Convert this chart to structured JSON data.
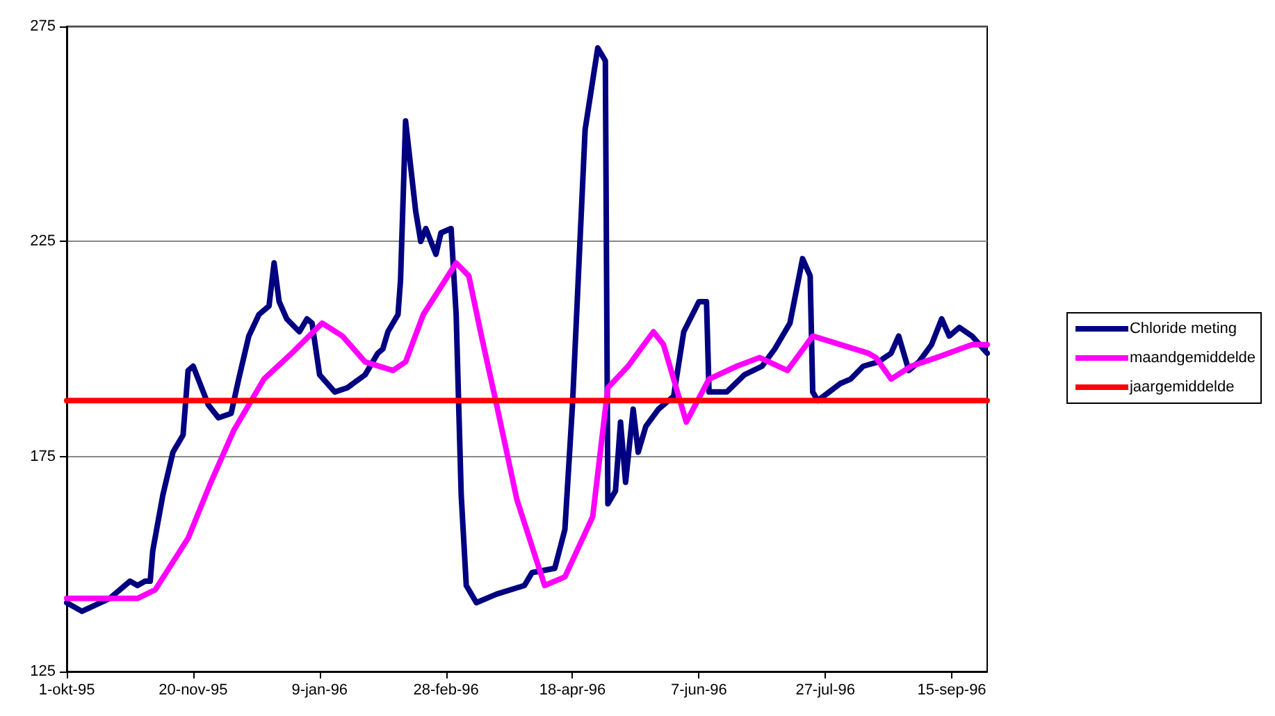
{
  "chart_data": {
    "type": "line",
    "xlim": [
      "1995-10-01",
      "1996-09-29"
    ],
    "xticks": [
      {
        "value": "1995-10-01",
        "label": "1-okt-95"
      },
      {
        "value": "1995-11-20",
        "label": "20-nov-95"
      },
      {
        "value": "1996-01-09",
        "label": "9-jan-96"
      },
      {
        "value": "1996-02-28",
        "label": "28-feb-96"
      },
      {
        "value": "1996-04-18",
        "label": "18-apr-96"
      },
      {
        "value": "1996-06-07",
        "label": "7-jun-96"
      },
      {
        "value": "1996-07-27",
        "label": "27-jul-96"
      },
      {
        "value": "1996-09-15",
        "label": "15-sep-96"
      }
    ],
    "ylim": [
      125,
      275
    ],
    "yticks": [
      125,
      175,
      225,
      275
    ],
    "grid": "y",
    "legend": "right",
    "marker": "none",
    "line_style": "solid",
    "series": [
      {
        "name": "Chloride meting",
        "color": "#000080",
        "x": [
          "1995-10-01",
          "1995-10-07",
          "1995-10-18",
          "1995-10-26",
          "1995-10-29",
          "1995-11-01",
          "1995-11-03",
          "1995-11-04",
          "1995-11-08",
          "1995-11-12",
          "1995-11-16",
          "1995-11-18",
          "1995-11-20",
          "1995-11-26",
          "1995-11-30",
          "1995-12-05",
          "1995-12-08",
          "1995-12-12",
          "1995-12-16",
          "1995-12-20",
          "1995-12-22",
          "1995-12-24",
          "1995-12-27",
          "1996-01-01",
          "1996-01-04",
          "1996-01-06",
          "1996-01-09",
          "1996-01-15",
          "1996-01-20",
          "1996-01-27",
          "1996-02-01",
          "1996-02-03",
          "1996-02-05",
          "1996-02-09",
          "1996-02-10",
          "1996-02-12",
          "1996-02-16",
          "1996-02-18",
          "1996-02-20",
          "1996-02-24",
          "1996-02-26",
          "1996-03-01",
          "1996-03-03",
          "1996-03-05",
          "1996-03-07",
          "1996-03-11",
          "1996-03-19",
          "1996-03-30",
          "1996-04-02",
          "1996-04-11",
          "1996-04-15",
          "1996-04-18",
          "1996-04-23",
          "1996-04-28",
          "1996-05-01",
          "1996-05-02",
          "1996-05-05",
          "1996-05-07",
          "1996-05-09",
          "1996-05-12",
          "1996-05-14",
          "1996-05-17",
          "1996-05-22",
          "1996-05-28",
          "1996-06-01",
          "1996-06-07",
          "1996-06-10",
          "1996-06-11",
          "1996-06-18",
          "1996-06-25",
          "1996-07-02",
          "1996-07-07",
          "1996-07-13",
          "1996-07-18",
          "1996-07-21",
          "1996-07-22",
          "1996-07-24",
          "1996-08-02",
          "1996-08-06",
          "1996-08-11",
          "1996-08-17",
          "1996-08-22",
          "1996-08-25",
          "1996-08-27",
          "1996-08-29",
          "1996-09-02",
          "1996-09-07",
          "1996-09-11",
          "1996-09-14",
          "1996-09-18",
          "1996-09-23",
          "1996-09-29"
        ],
        "values": [
          141,
          139,
          142,
          146,
          145,
          146,
          146,
          153,
          166,
          176,
          180,
          195,
          196,
          187,
          184,
          185,
          193,
          203,
          208,
          210,
          220,
          211,
          207,
          204,
          207,
          206,
          194,
          190,
          191,
          194,
          199,
          200,
          204,
          208,
          216,
          253,
          232,
          225,
          228,
          222,
          227,
          228,
          208,
          166,
          145,
          141,
          143,
          145,
          148,
          149,
          158,
          187,
          251,
          270,
          267,
          164,
          167,
          183,
          169,
          186,
          176,
          182,
          186,
          189,
          204,
          211,
          211,
          190,
          190,
          194,
          196,
          200,
          206,
          221,
          217,
          190,
          188,
          192,
          193,
          196,
          197,
          199,
          203,
          199,
          195,
          197,
          201,
          207,
          203,
          205,
          203,
          199
        ]
      },
      {
        "name": "maandgemiddelde",
        "color": "#ff00ff",
        "x": [
          "1995-10-01",
          "1995-10-29",
          "1995-11-05",
          "1995-11-18",
          "1995-11-27",
          "1995-12-06",
          "1995-12-18",
          "1995-12-29",
          "1996-01-10",
          "1996-01-18",
          "1996-01-27",
          "1996-02-07",
          "1996-02-12",
          "1996-02-19",
          "1996-03-03",
          "1996-03-08",
          "1996-03-13",
          "1996-03-19",
          "1996-03-27",
          "1996-04-07",
          "1996-04-15",
          "1996-04-26",
          "1996-05-02",
          "1996-05-10",
          "1996-05-20",
          "1996-05-24",
          "1996-06-02",
          "1996-06-11",
          "1996-06-22",
          "1996-07-01",
          "1996-07-12",
          "1996-07-22",
          "1996-08-13",
          "1996-08-16",
          "1996-08-22",
          "1996-08-30",
          "1996-09-09",
          "1996-09-23",
          "1996-09-29"
        ],
        "values": [
          142,
          142,
          144,
          156,
          169,
          181,
          193,
          199,
          206,
          203,
          197,
          195,
          197,
          208,
          220,
          217,
          203,
          187,
          165,
          145,
          147,
          161,
          191,
          196,
          204,
          201,
          183,
          193,
          196,
          198,
          195,
          203,
          199,
          198,
          193,
          196,
          198,
          201,
          201
        ]
      },
      {
        "name": "jaargemiddelde",
        "color": "#ff0000",
        "x": [
          "1995-10-01",
          "1996-09-29"
        ],
        "values": [
          188,
          188
        ]
      }
    ]
  }
}
